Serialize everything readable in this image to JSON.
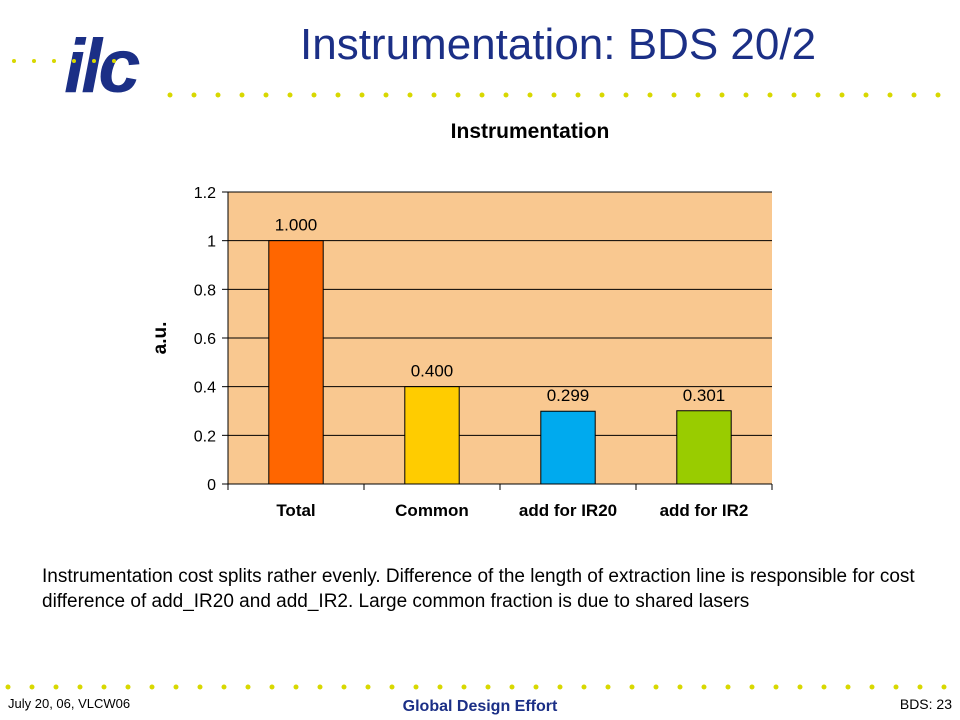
{
  "slide": {
    "logo_text": "ilc",
    "title": "Instrumentation: BDS 20/2",
    "caption": "Instrumentation cost splits rather evenly. Difference of the length of extraction line is responsible for cost difference of add_IR20 and add_IR2. Large common fraction is due to shared lasers",
    "footer_left": "July 20, 06, VLCW06",
    "footer_center": "Global Design Effort",
    "footer_right": "BDS: 23"
  },
  "colors": {
    "brand": "#1b2f86",
    "dots": "#d8d800",
    "plot_background": "#f9c890"
  },
  "chart_data": {
    "type": "bar",
    "title": "Instrumentation",
    "xlabel": "",
    "ylabel": "a.u.",
    "categories": [
      "Total",
      "Common",
      "add for IR20",
      "add for IR2"
    ],
    "values": [
      1.0,
      0.4,
      0.299,
      0.301
    ],
    "value_labels": [
      "1.000",
      "0.400",
      "0.299",
      "0.301"
    ],
    "bar_colors": [
      "#ff6600",
      "#ffcc00",
      "#00aaee",
      "#99cc00"
    ],
    "ylim": [
      0,
      1.2
    ],
    "yticks": [
      0,
      0.2,
      0.4,
      0.6,
      0.8,
      1,
      1.2
    ],
    "ytick_labels": [
      "0",
      "0.2",
      "0.4",
      "0.6",
      "0.8",
      "1",
      "1.2"
    ],
    "grid": true,
    "legend": false
  }
}
